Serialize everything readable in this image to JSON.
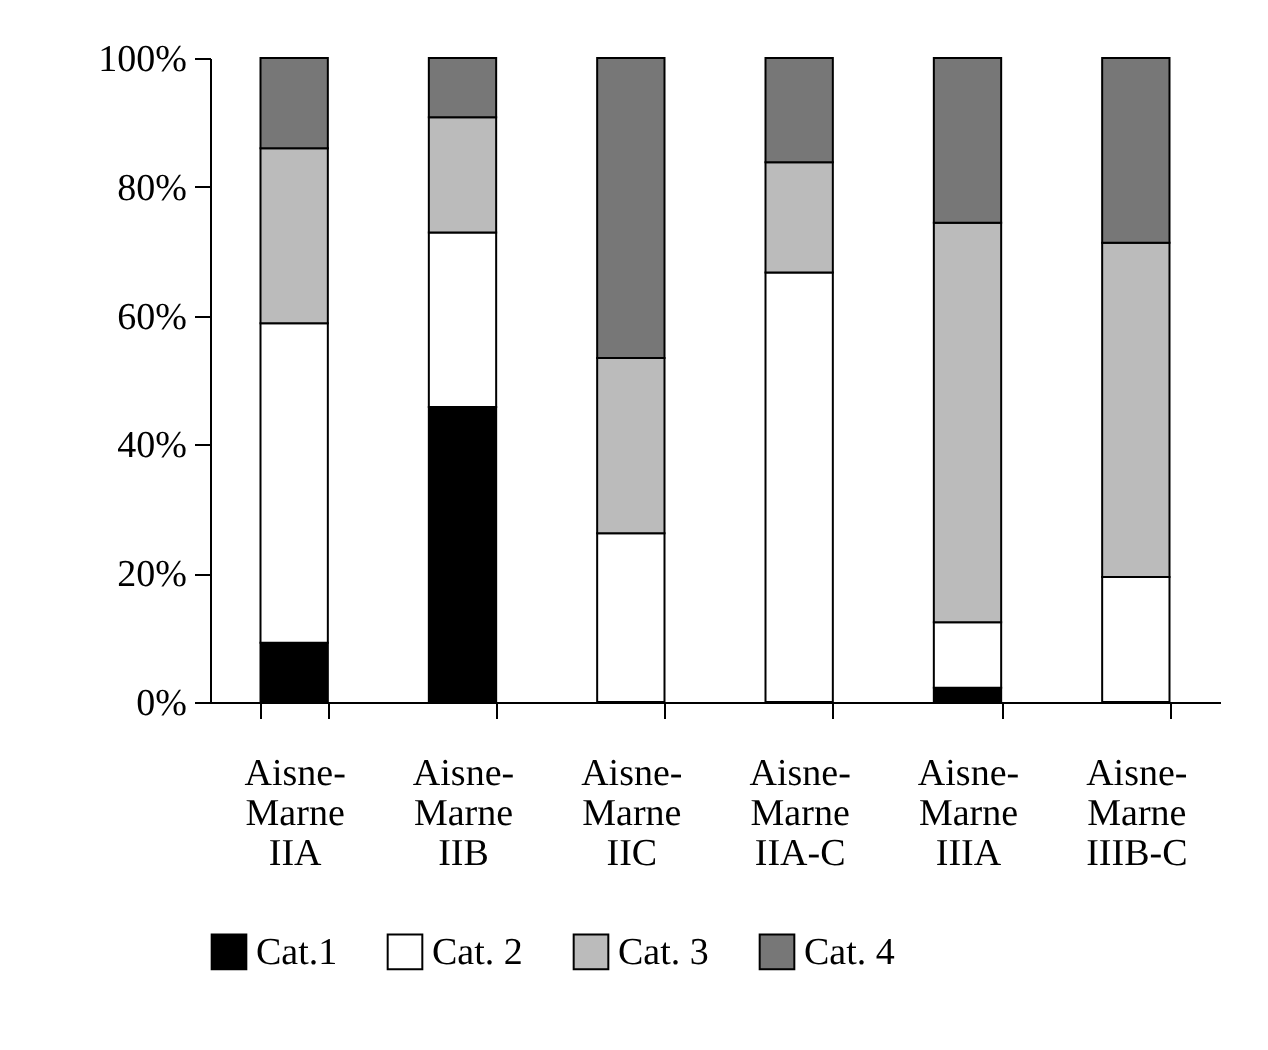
{
  "chart_data": {
    "type": "bar",
    "stacked": true,
    "categories": [
      "Aisne-\nMarne\nIIA",
      "Aisne-\nMarne\nIIB",
      "Aisne-\nMarne\nIIC",
      "Aisne-\nMarne\nIIA-C",
      "Aisne-\nMarne\nIIIA",
      "Aisne-\nMarne\nIIIB-C"
    ],
    "series": [
      {
        "name": "Cat.1",
        "color": "#000000",
        "values": [
          9.2,
          45.8,
          0,
          0,
          2.2,
          0
        ]
      },
      {
        "name": "Cat. 2",
        "color": "#ffffff",
        "values": [
          49.6,
          27.1,
          26.2,
          66.7,
          10.2,
          19.4
        ]
      },
      {
        "name": "Cat. 3",
        "color": "#bbbbbb",
        "values": [
          27.2,
          17.9,
          27.2,
          17.1,
          62.0,
          51.9
        ]
      },
      {
        "name": "Cat. 4",
        "color": "#777777",
        "values": [
          14.0,
          9.2,
          46.6,
          16.2,
          25.6,
          28.7
        ]
      }
    ],
    "ylim": [
      0,
      100
    ],
    "yticks": [
      {
        "value": 0,
        "label": "0%"
      },
      {
        "value": 20,
        "label": "20%"
      },
      {
        "value": 40,
        "label": "40%"
      },
      {
        "value": 60,
        "label": "60%"
      },
      {
        "value": 80,
        "label": "80%"
      },
      {
        "value": 100,
        "label": "100%"
      }
    ],
    "grid": false,
    "legend": "bottom"
  }
}
